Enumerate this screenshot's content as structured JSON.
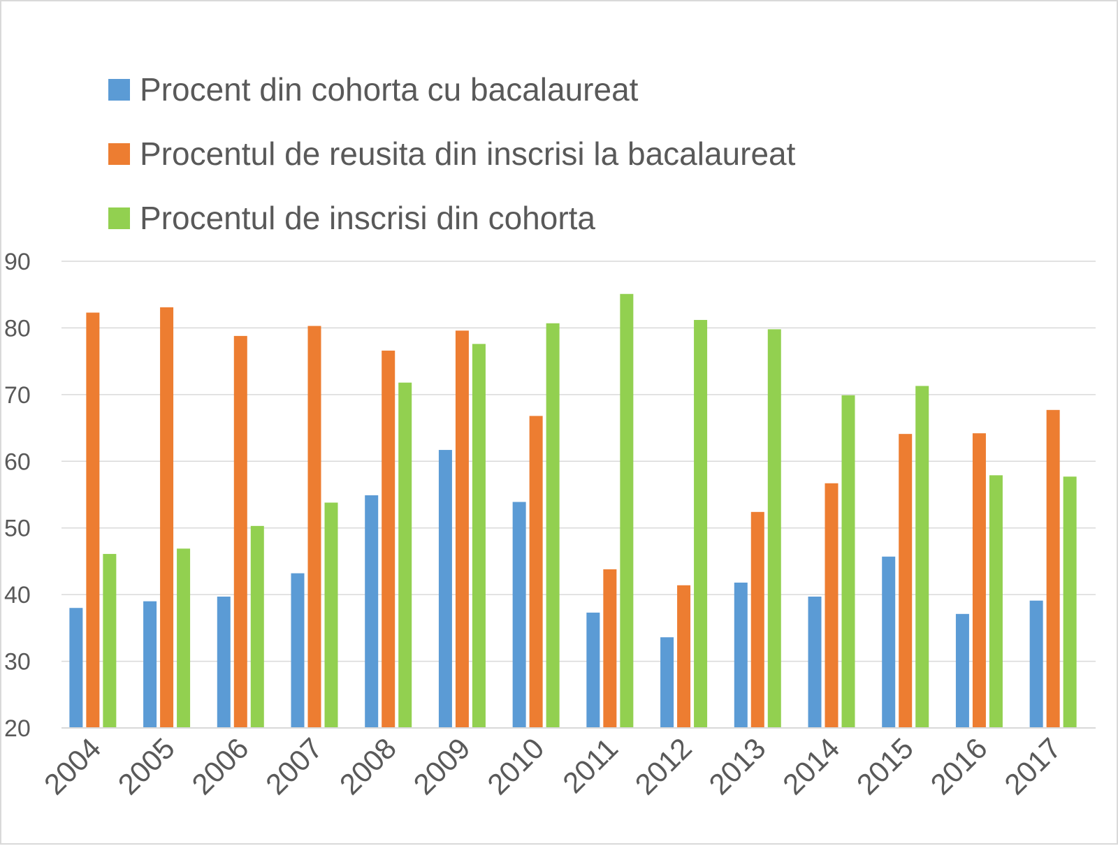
{
  "chart_data": {
    "type": "bar",
    "categories": [
      "2004",
      "2005",
      "2006",
      "2007",
      "2008",
      "2009",
      "2010",
      "2011",
      "2012",
      "2013",
      "2014",
      "2015",
      "2016",
      "2017"
    ],
    "series": [
      {
        "name": "Procent din cohorta cu bacalaureat",
        "color": "#5b9bd5",
        "values": [
          38.0,
          39.0,
          39.7,
          43.2,
          54.9,
          61.7,
          53.9,
          37.3,
          33.6,
          41.8,
          39.7,
          45.7,
          37.1,
          39.1
        ]
      },
      {
        "name": "Procentul de reusita din inscrisi la bacalaureat",
        "color": "#ed7d31",
        "values": [
          82.3,
          83.1,
          78.8,
          80.3,
          76.6,
          79.6,
          66.8,
          43.8,
          41.4,
          52.4,
          56.7,
          64.1,
          64.2,
          67.7
        ]
      },
      {
        "name": "Procentul de inscrisi din cohorta",
        "color": "#92d050",
        "values": [
          46.1,
          46.9,
          50.3,
          53.8,
          71.8,
          77.6,
          80.7,
          85.1,
          81.2,
          79.8,
          69.9,
          71.3,
          57.9,
          57.7
        ]
      }
    ],
    "yticks": [
      "20",
      "30",
      "40",
      "50",
      "60",
      "70",
      "80",
      "90"
    ],
    "ylim": [
      20,
      90
    ],
    "grid": true,
    "legend_position": "top-left"
  }
}
